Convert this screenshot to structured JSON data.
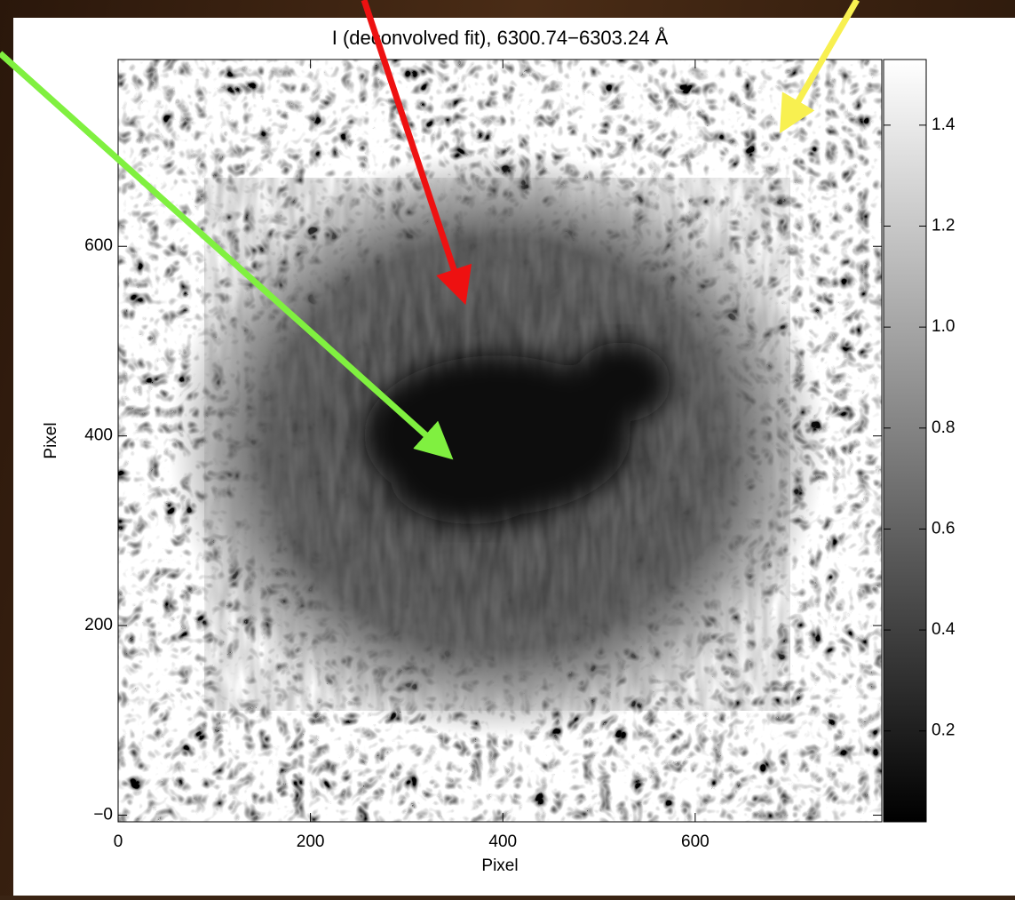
{
  "chart_data": {
    "type": "image",
    "title": "I (deconvolved fit), 6300.74−6303.24 Å",
    "xlabel": "Pixel",
    "ylabel": "Pixel",
    "xlim": [
      0,
      794
    ],
    "xticks": [
      0,
      200,
      400,
      600
    ],
    "ylim": [
      -7,
      797
    ],
    "yticks": [
      {
        "value": 0,
        "label": "−0"
      },
      200,
      400,
      600
    ],
    "colorbar": {
      "colormap": "gray",
      "lim": [
        0.02,
        1.53
      ],
      "ticks": [
        0.2,
        0.4,
        0.6,
        0.8,
        {
          "value": 1,
          "label": "1.0"
        },
        1.2,
        1.4
      ]
    }
  }
}
